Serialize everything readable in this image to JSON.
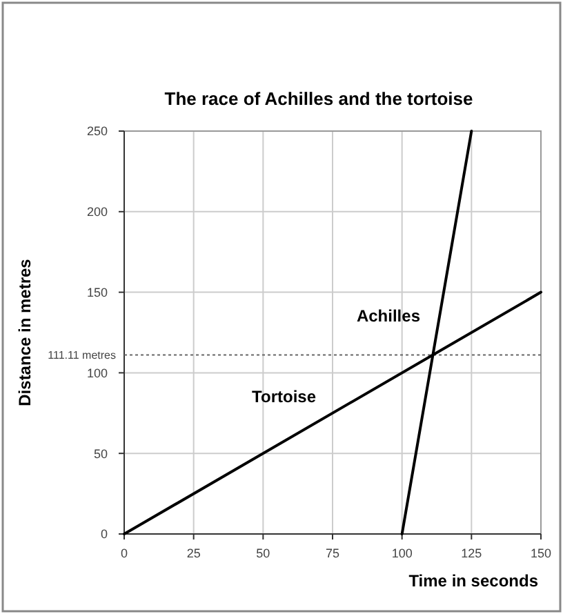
{
  "chart_data": {
    "type": "line",
    "title": "The race of Achilles and the tortoise",
    "xlabel": "Time in seconds",
    "ylabel": "Distance in metres",
    "series": [
      {
        "name": "Tortoise",
        "color": "#000000",
        "x": [
          0,
          150
        ],
        "values": [
          0,
          150
        ]
      },
      {
        "name": "Achilles",
        "color": "#000000",
        "x": [
          100,
          125
        ],
        "values": [
          0,
          250
        ]
      }
    ],
    "xlim": [
      0,
      150
    ],
    "xticks": [
      0,
      25,
      50,
      75,
      100,
      125,
      150
    ],
    "ylim": [
      0,
      250
    ],
    "yticks": [
      0,
      50,
      100,
      150,
      200,
      250
    ],
    "ref_lines": [
      {
        "axis": "y",
        "value": 111.11,
        "label": "111.11 metres",
        "line_style": "dotted"
      }
    ],
    "grid": true,
    "legend": false,
    "marker": "none",
    "line_style": "solid"
  }
}
